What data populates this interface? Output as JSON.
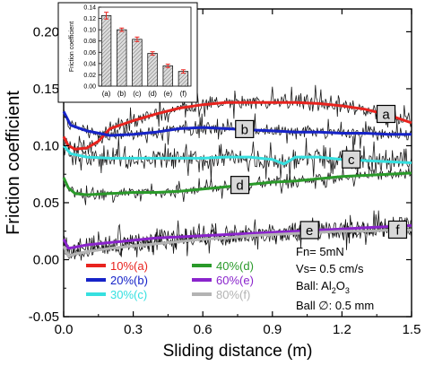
{
  "chart_data": [
    {
      "type": "line",
      "xlabel": "Sliding distance (m)",
      "ylabel": "Friction coefficient",
      "xlim": [
        0.0,
        1.5
      ],
      "ylim": [
        -0.05,
        0.22
      ],
      "xticks": [
        "0.0",
        "0.3",
        "0.6",
        "0.9",
        "1.2",
        "1.5"
      ],
      "yticks": [
        "-0.05",
        "0.00",
        "0.05",
        "0.10",
        "0.15",
        "0.20"
      ],
      "annotation": {
        "line1": "Fn= 5mN",
        "line2": "Vs= 0.5 cm/s",
        "line3_prefix": "Ball: Al",
        "line3_sub1": "2",
        "line3_mid": "O",
        "line3_sub2": "3",
        "line4": "Ball ∅: 0.5 mm"
      },
      "series": [
        {
          "name": "10%",
          "tag": "(a)",
          "label": "a",
          "color": "#e8231e",
          "x": [
            0,
            0.02,
            0.05,
            0.1,
            0.15,
            0.2,
            0.3,
            0.4,
            0.5,
            0.6,
            0.7,
            0.8,
            0.9,
            1.0,
            1.1,
            1.2,
            1.3,
            1.4,
            1.5
          ],
          "y": [
            0.108,
            0.1,
            0.097,
            0.098,
            0.104,
            0.115,
            0.122,
            0.128,
            0.133,
            0.136,
            0.138,
            0.138,
            0.138,
            0.138,
            0.137,
            0.135,
            0.132,
            0.127,
            0.12
          ]
        },
        {
          "name": "20%",
          "tag": "(b)",
          "label": "b",
          "color": "#1623c8",
          "x": [
            0,
            0.03,
            0.1,
            0.2,
            0.3,
            0.4,
            0.5,
            0.6,
            0.7,
            0.8,
            0.9,
            1.0,
            1.1,
            1.2,
            1.3,
            1.4,
            1.5
          ],
          "y": [
            0.13,
            0.118,
            0.113,
            0.109,
            0.11,
            0.112,
            0.115,
            0.116,
            0.115,
            0.114,
            0.113,
            0.112,
            0.112,
            0.111,
            0.111,
            0.11,
            0.11
          ]
        },
        {
          "name": "30%",
          "tag": "(c)",
          "label": "c",
          "color": "#36e0e0",
          "x": [
            0,
            0.03,
            0.1,
            0.2,
            0.3,
            0.4,
            0.5,
            0.6,
            0.7,
            0.8,
            0.9,
            0.95,
            1.0,
            1.1,
            1.2,
            1.3,
            1.4,
            1.5
          ],
          "y": [
            0.1,
            0.093,
            0.09,
            0.089,
            0.089,
            0.089,
            0.089,
            0.089,
            0.09,
            0.09,
            0.088,
            0.084,
            0.09,
            0.09,
            0.088,
            0.087,
            0.086,
            0.085
          ]
        },
        {
          "name": "40%",
          "tag": "(d)",
          "label": "d",
          "color": "#2a9a2a",
          "x": [
            0,
            0.02,
            0.05,
            0.1,
            0.2,
            0.3,
            0.4,
            0.5,
            0.6,
            0.7,
            0.8,
            0.9,
            1.0,
            1.1,
            1.2,
            1.3,
            1.4,
            1.5
          ],
          "y": [
            0.072,
            0.063,
            0.058,
            0.057,
            0.058,
            0.059,
            0.059,
            0.06,
            0.062,
            0.064,
            0.066,
            0.068,
            0.069,
            0.071,
            0.073,
            0.074,
            0.075,
            0.076
          ]
        },
        {
          "name": "60%",
          "tag": "(e)",
          "label": "e",
          "color": "#8a24cc",
          "x": [
            0,
            0.02,
            0.05,
            0.1,
            0.2,
            0.3,
            0.4,
            0.5,
            0.6,
            0.7,
            0.8,
            0.9,
            1.0,
            1.1,
            1.2,
            1.3,
            1.4,
            1.5
          ],
          "y": [
            0.018,
            0.01,
            0.011,
            0.013,
            0.015,
            0.017,
            0.019,
            0.02,
            0.021,
            0.022,
            0.023,
            0.024,
            0.025,
            0.026,
            0.027,
            0.028,
            0.029,
            0.03
          ]
        },
        {
          "name": "80%",
          "tag": "(f)",
          "label": "f",
          "color": "#b3b3b3",
          "x": [
            0,
            0.02,
            0.05,
            0.1,
            0.2,
            0.3,
            0.4,
            0.5,
            0.6,
            0.7,
            0.8,
            0.9,
            1.0,
            1.1,
            1.2,
            1.3,
            1.4,
            1.5
          ],
          "y": [
            0.012,
            0.003,
            0.005,
            0.007,
            0.01,
            0.012,
            0.014,
            0.016,
            0.018,
            0.019,
            0.021,
            0.022,
            0.023,
            0.024,
            0.025,
            0.025,
            0.026,
            0.026
          ]
        }
      ],
      "raw_trace_color": "#000000"
    },
    {
      "type": "bar",
      "ylabel": "Friction coefficient",
      "ylim": [
        0.0,
        0.14
      ],
      "yticks": [
        "0.00",
        "0.02",
        "0.04",
        "0.06",
        "0.08",
        "0.10",
        "0.12",
        "0.14"
      ],
      "categories": [
        "(a)",
        "(b)",
        "(c)",
        "(d)",
        "(e)",
        "(f)"
      ],
      "values": [
        0.125,
        0.1,
        0.083,
        0.058,
        0.036,
        0.026
      ],
      "errors": [
        0.006,
        0.003,
        0.004,
        0.003,
        0.003,
        0.003
      ],
      "bar_fill": "#dcdcdc",
      "error_color": "#e8231e"
    }
  ]
}
